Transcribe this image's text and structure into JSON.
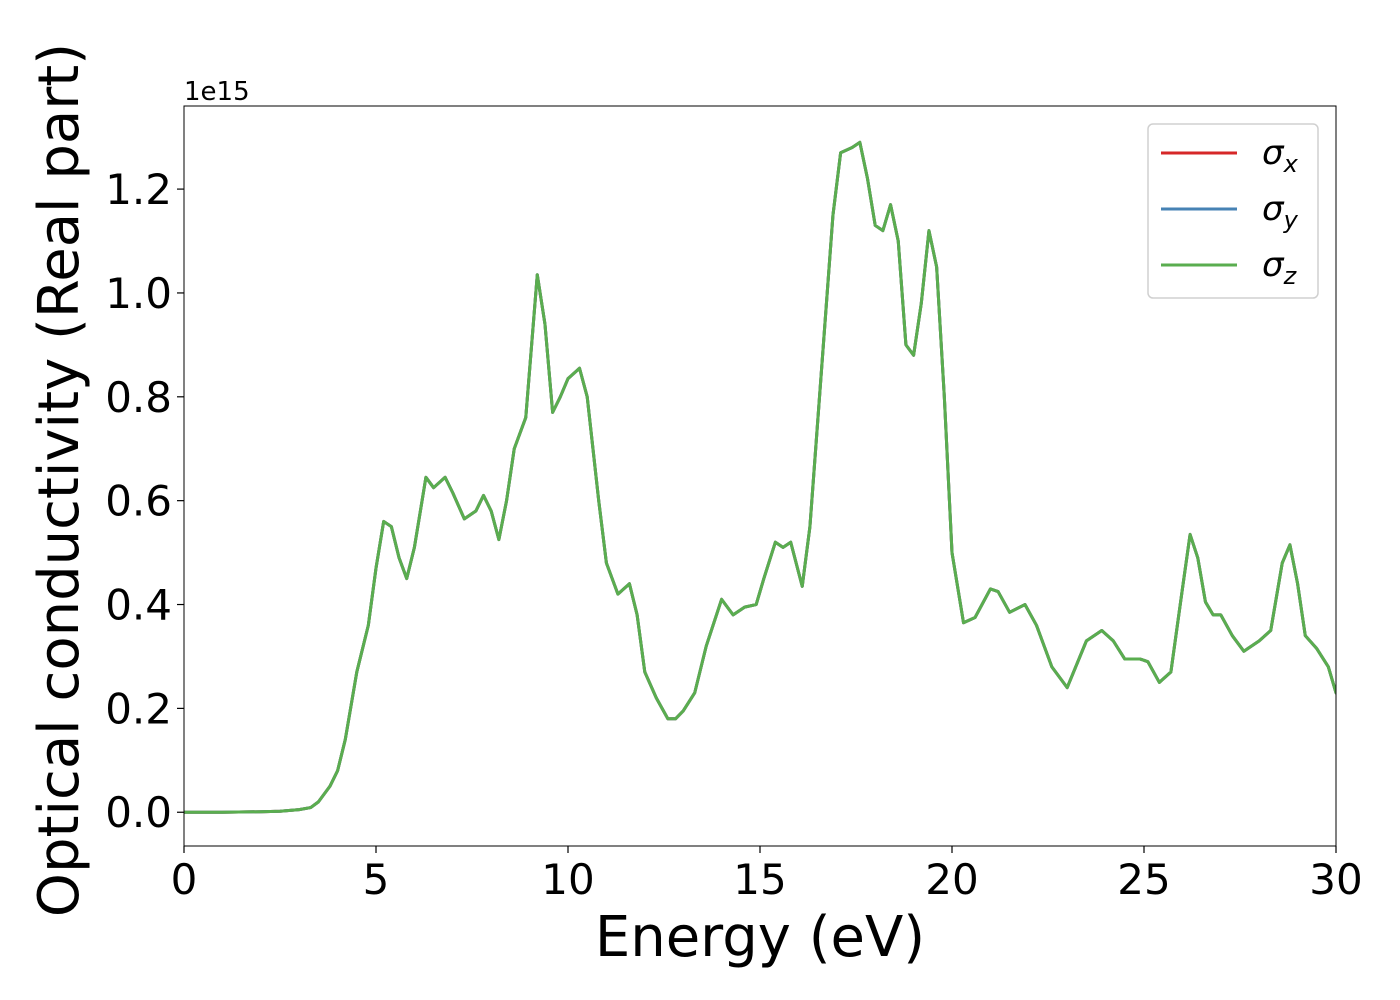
{
  "chart_data": {
    "type": "line",
    "title": "",
    "xlabel": "Energy (eV)",
    "ylabel": "Optical conductivity (Real part)",
    "y_offset_text": "1e15",
    "xlim": [
      0,
      30
    ],
    "ylim": [
      -0.065,
      1.36
    ],
    "xticks": [
      0,
      5,
      10,
      15,
      20,
      25,
      30
    ],
    "xtick_labels": [
      "0",
      "5",
      "10",
      "15",
      "20",
      "25",
      "30"
    ],
    "yticks": [
      0.0,
      0.2,
      0.4,
      0.6,
      0.8,
      1.0,
      1.2
    ],
    "ytick_labels": [
      "0.0",
      "0.2",
      "0.4",
      "0.6",
      "0.8",
      "1.0",
      "1.2"
    ],
    "grid": false,
    "legend_position": "top-right",
    "x": [
      0,
      1,
      2,
      2.5,
      3,
      3.3,
      3.5,
      3.8,
      4.0,
      4.2,
      4.5,
      4.8,
      5.0,
      5.2,
      5.4,
      5.6,
      5.8,
      6.0,
      6.3,
      6.5,
      6.8,
      7.0,
      7.3,
      7.6,
      7.8,
      8.0,
      8.2,
      8.4,
      8.6,
      8.9,
      9.2,
      9.4,
      9.6,
      9.8,
      10.0,
      10.3,
      10.5,
      10.8,
      11.0,
      11.3,
      11.6,
      11.8,
      12.0,
      12.3,
      12.6,
      12.8,
      13.0,
      13.3,
      13.6,
      14.0,
      14.3,
      14.6,
      14.9,
      15.1,
      15.4,
      15.6,
      15.8,
      16.1,
      16.3,
      16.6,
      16.9,
      17.1,
      17.4,
      17.6,
      17.8,
      18.0,
      18.2,
      18.4,
      18.6,
      18.8,
      19.0,
      19.2,
      19.4,
      19.6,
      19.8,
      20.0,
      20.3,
      20.6,
      21.0,
      21.2,
      21.5,
      21.9,
      22.2,
      22.6,
      23.0,
      23.5,
      23.9,
      24.2,
      24.5,
      24.9,
      25.1,
      25.4,
      25.7,
      26.0,
      26.2,
      26.4,
      26.6,
      26.8,
      27.0,
      27.3,
      27.6,
      28.0,
      28.3,
      28.6,
      28.8,
      29.0,
      29.2,
      29.5,
      29.8,
      30.0
    ],
    "series": [
      {
        "name": "σ_x",
        "color": "#d62728",
        "values": [
          0.0,
          0.0,
          0.001,
          0.002,
          0.005,
          0.009,
          0.02,
          0.05,
          0.08,
          0.14,
          0.27,
          0.36,
          0.47,
          0.56,
          0.55,
          0.49,
          0.45,
          0.51,
          0.645,
          0.625,
          0.645,
          0.615,
          0.565,
          0.58,
          0.61,
          0.58,
          0.525,
          0.6,
          0.7,
          0.76,
          1.035,
          0.94,
          0.77,
          0.8,
          0.835,
          0.855,
          0.8,
          0.6,
          0.48,
          0.42,
          0.44,
          0.38,
          0.27,
          0.22,
          0.18,
          0.18,
          0.195,
          0.23,
          0.32,
          0.41,
          0.38,
          0.395,
          0.4,
          0.45,
          0.52,
          0.51,
          0.52,
          0.435,
          0.55,
          0.85,
          1.15,
          1.27,
          1.28,
          1.29,
          1.22,
          1.13,
          1.12,
          1.17,
          1.1,
          0.9,
          0.88,
          0.98,
          1.12,
          1.05,
          0.8,
          0.5,
          0.365,
          0.375,
          0.43,
          0.425,
          0.385,
          0.4,
          0.36,
          0.28,
          0.24,
          0.33,
          0.35,
          0.33,
          0.295,
          0.295,
          0.29,
          0.25,
          0.27,
          0.43,
          0.535,
          0.49,
          0.405,
          0.38,
          0.38,
          0.34,
          0.31,
          0.33,
          0.35,
          0.48,
          0.515,
          0.44,
          0.34,
          0.315,
          0.28,
          0.23
        ]
      },
      {
        "name": "σ_y",
        "color": "#4682b4",
        "values": [
          0.0,
          0.0,
          0.001,
          0.002,
          0.005,
          0.009,
          0.02,
          0.05,
          0.08,
          0.14,
          0.27,
          0.36,
          0.47,
          0.56,
          0.55,
          0.49,
          0.45,
          0.51,
          0.645,
          0.625,
          0.645,
          0.615,
          0.565,
          0.58,
          0.61,
          0.58,
          0.525,
          0.6,
          0.7,
          0.76,
          1.035,
          0.94,
          0.77,
          0.8,
          0.835,
          0.855,
          0.8,
          0.6,
          0.48,
          0.42,
          0.44,
          0.38,
          0.27,
          0.22,
          0.18,
          0.18,
          0.195,
          0.23,
          0.32,
          0.41,
          0.38,
          0.395,
          0.4,
          0.45,
          0.52,
          0.51,
          0.52,
          0.435,
          0.55,
          0.85,
          1.15,
          1.27,
          1.28,
          1.29,
          1.22,
          1.13,
          1.12,
          1.17,
          1.1,
          0.9,
          0.88,
          0.98,
          1.12,
          1.05,
          0.8,
          0.5,
          0.365,
          0.375,
          0.43,
          0.425,
          0.385,
          0.4,
          0.36,
          0.28,
          0.24,
          0.33,
          0.35,
          0.33,
          0.295,
          0.295,
          0.29,
          0.25,
          0.27,
          0.43,
          0.535,
          0.49,
          0.405,
          0.38,
          0.38,
          0.34,
          0.31,
          0.33,
          0.35,
          0.48,
          0.515,
          0.44,
          0.34,
          0.315,
          0.28,
          0.23
        ]
      },
      {
        "name": "σ_z",
        "color": "#5aad4f",
        "values": [
          0.0,
          0.0,
          0.001,
          0.002,
          0.005,
          0.009,
          0.02,
          0.05,
          0.08,
          0.14,
          0.27,
          0.36,
          0.47,
          0.56,
          0.55,
          0.49,
          0.45,
          0.51,
          0.645,
          0.625,
          0.645,
          0.615,
          0.565,
          0.58,
          0.61,
          0.58,
          0.525,
          0.6,
          0.7,
          0.76,
          1.035,
          0.94,
          0.77,
          0.8,
          0.835,
          0.855,
          0.8,
          0.6,
          0.48,
          0.42,
          0.44,
          0.38,
          0.27,
          0.22,
          0.18,
          0.18,
          0.195,
          0.23,
          0.32,
          0.41,
          0.38,
          0.395,
          0.4,
          0.45,
          0.52,
          0.51,
          0.52,
          0.435,
          0.55,
          0.85,
          1.15,
          1.27,
          1.28,
          1.29,
          1.22,
          1.13,
          1.12,
          1.17,
          1.1,
          0.9,
          0.88,
          0.98,
          1.12,
          1.05,
          0.8,
          0.5,
          0.365,
          0.375,
          0.43,
          0.425,
          0.385,
          0.4,
          0.36,
          0.28,
          0.24,
          0.33,
          0.35,
          0.33,
          0.295,
          0.295,
          0.29,
          0.25,
          0.27,
          0.43,
          0.535,
          0.49,
          0.405,
          0.38,
          0.38,
          0.34,
          0.31,
          0.33,
          0.35,
          0.48,
          0.515,
          0.44,
          0.34,
          0.315,
          0.28,
          0.23
        ]
      }
    ],
    "legend": [
      {
        "symbol": "σ",
        "subscript": "x",
        "color": "#d62728"
      },
      {
        "symbol": "σ",
        "subscript": "y",
        "color": "#4682b4"
      },
      {
        "symbol": "σ",
        "subscript": "z",
        "color": "#5aad4f"
      }
    ]
  }
}
